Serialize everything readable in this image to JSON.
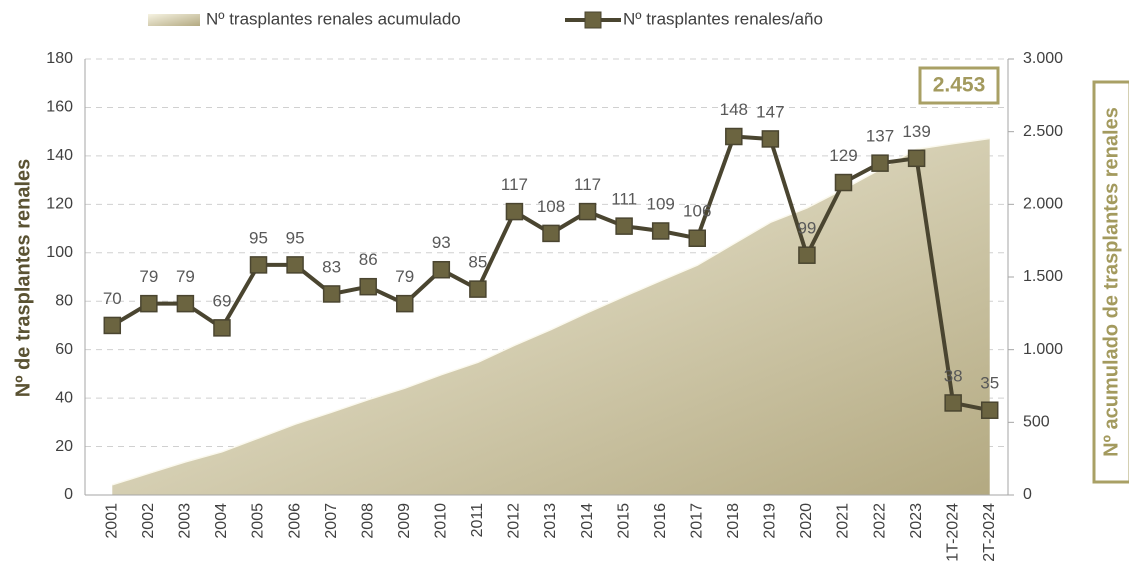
{
  "chart_data": {
    "type": "line",
    "categories": [
      "2001",
      "2002",
      "2003",
      "2004",
      "2005",
      "2006",
      "2007",
      "2008",
      "2009",
      "2010",
      "2011",
      "2012",
      "2013",
      "2014",
      "2015",
      "2016",
      "2017",
      "2018",
      "2019",
      "2020",
      "2021",
      "2022",
      "2023",
      "1T-2024",
      "2T-2024"
    ],
    "series": [
      {
        "name": "Nº trasplantes renales acumulado",
        "type": "area",
        "axis": "y2",
        "color": "#b8ae86",
        "values": [
          70,
          149,
          228,
          297,
          392,
          487,
          570,
          656,
          735,
          828,
          913,
          1030,
          1138,
          1255,
          1366,
          1475,
          1581,
          1729,
          1876,
          1975,
          2104,
          2241,
          2380,
          2418,
          2453
        ]
      },
      {
        "name": "Nº trasplantes renales/año",
        "type": "line",
        "color": "#4a4530",
        "marker_color": "#6b6440",
        "values": [
          70,
          79,
          79,
          69,
          95,
          95,
          83,
          86,
          79,
          93,
          85,
          117,
          108,
          117,
          111,
          109,
          106,
          148,
          147,
          99,
          129,
          137,
          139,
          38,
          35
        ]
      }
    ],
    "ylabel": "Nº de trasplantes renales",
    "y2label": "Nº acumulado de trasplantes renales",
    "annotation": "2.453",
    "ylim": [
      0,
      180
    ],
    "yticks": [
      0,
      20,
      40,
      60,
      80,
      100,
      120,
      140,
      160,
      180
    ],
    "y2lim": [
      0,
      3000
    ],
    "y2ticks": [
      0,
      500,
      {
        "value": 1000,
        "label": "1.000"
      },
      {
        "value": 1500,
        "label": "1.500"
      },
      {
        "value": 2000,
        "label": "2.000"
      },
      {
        "value": 2500,
        "label": "2.500"
      },
      {
        "value": 3000,
        "label": "3.000"
      }
    ],
    "grid": true
  }
}
